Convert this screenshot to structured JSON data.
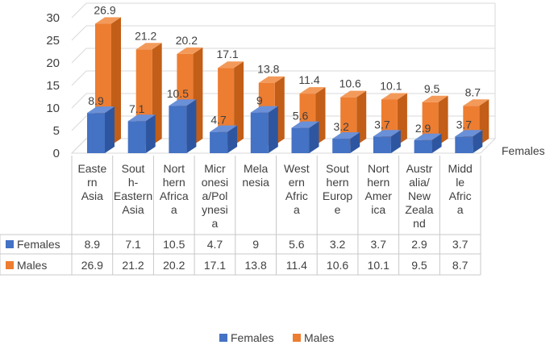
{
  "chart_data": {
    "type": "bar",
    "view": "3d-clustered-column-with-data-table",
    "categories": [
      [
        "Easte",
        "rn",
        "Asia"
      ],
      [
        "Sout",
        "h-",
        "Eastern",
        "Asia"
      ],
      [
        "Nort",
        "hern",
        "Africa",
        "a"
      ],
      [
        "Micr",
        "onesi",
        "a/Pol",
        "ynesi",
        "a"
      ],
      [
        "Mela",
        "nesia"
      ],
      [
        "West",
        "ern",
        "Afric",
        "a"
      ],
      [
        "Sout",
        "hern",
        "Europ",
        "e"
      ],
      [
        "Nort",
        "hern",
        "Amer",
        "ica"
      ],
      [
        "Austr",
        "alia/",
        "New",
        "Zeala",
        "nd"
      ],
      [
        "Midd",
        "le",
        "Afric",
        "a"
      ]
    ],
    "series": [
      {
        "name": "Females",
        "values": [
          8.9,
          7.1,
          10.5,
          4.7,
          9,
          5.6,
          3.2,
          3.7,
          2.9,
          3.7
        ]
      },
      {
        "name": "Males",
        "values": [
          26.9,
          21.2,
          20.2,
          17.1,
          13.8,
          11.4,
          10.6,
          10.1,
          9.5,
          8.7
        ]
      }
    ],
    "ylim": [
      0,
      30
    ],
    "yticks": [
      "0",
      "5",
      "10",
      "15",
      "20",
      "25",
      "30"
    ],
    "depth_axis_label": "Females",
    "grid": true,
    "legend": "bottom",
    "colors": {
      "Females": "#4472C4",
      "Males": "#ED7D31",
      "Females_side": "#2E56A0",
      "Males_side": "#C25E17",
      "Females_top": "#6A90D8",
      "Males_top": "#F39A5A"
    }
  }
}
